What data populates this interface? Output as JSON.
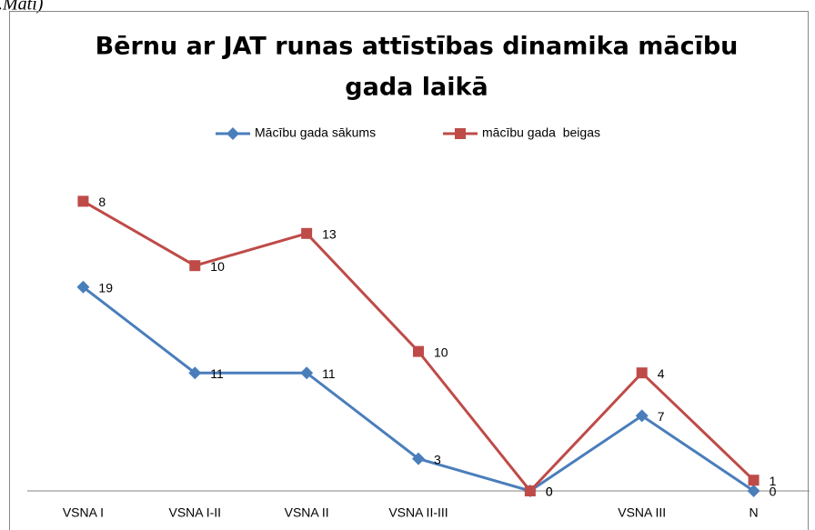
{
  "caption_fragment": ".Mati)",
  "chart_data": {
    "type": "line",
    "stacked": true,
    "title": [
      "Bērnu ar JAT runas attīstības dinamika mācību",
      "gada laikā"
    ],
    "categories": [
      "VSNA I",
      "VSNA I-II",
      "VSNA II",
      "VSNA II-III",
      null,
      "VSNA III",
      "N"
    ],
    "series": [
      {
        "name": "Mācību gada sākums",
        "color": "#4a7ebb",
        "marker": "diamond",
        "values": [
          19,
          11,
          11,
          3,
          0,
          7,
          0
        ]
      },
      {
        "name": "mācību gada  beigas",
        "color": "#be4b48",
        "marker": "square",
        "values": [
          8,
          10,
          13,
          10,
          0,
          4,
          1
        ]
      }
    ],
    "ylim": [
      0,
      30
    ],
    "legend": "top"
  }
}
